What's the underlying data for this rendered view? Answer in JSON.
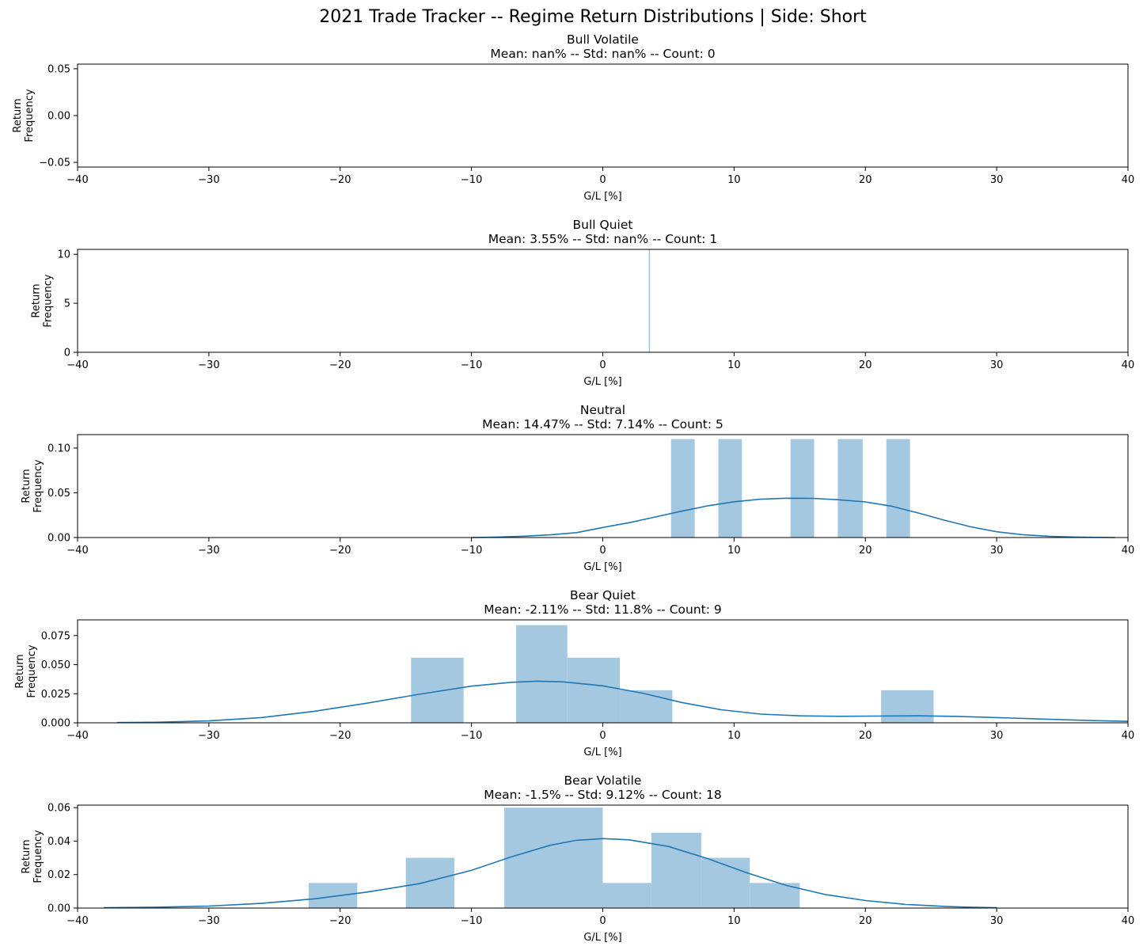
{
  "chart_data": {
    "type": "histogram",
    "title": "2021 Trade Tracker -- Regime Return Distributions | Side: Short",
    "panels": [
      {
        "name": "Bull Volatile",
        "subtitle": "Mean: nan% -- Std: nan% -- Count: 0",
        "xlabel": "G/L [%]",
        "ylabel_line1": "Return",
        "ylabel_line2": "Frequency",
        "xlim": [
          -40,
          40
        ],
        "ylim": [
          -0.055,
          0.055
        ],
        "xticks": [
          -40,
          -30,
          -20,
          -10,
          0,
          10,
          20,
          30,
          40
        ],
        "xtick_labels": [
          "−40",
          "−30",
          "−20",
          "−10",
          "0",
          "10",
          "20",
          "30",
          "40"
        ],
        "yticks": [
          -0.05,
          0,
          0.05
        ],
        "ytick_labels": [
          "−0.05",
          "0.00",
          "0.05"
        ],
        "bins": [],
        "kde": []
      },
      {
        "name": "Bull Quiet",
        "subtitle": "Mean: 3.55% -- Std: nan% -- Count: 1",
        "xlabel": "G/L [%]",
        "ylabel_line1": "Return",
        "ylabel_line2": "Frequency",
        "xlim": [
          -40,
          40
        ],
        "ylim": [
          0,
          10.5
        ],
        "xticks": [
          -40,
          -30,
          -20,
          -10,
          0,
          10,
          20,
          30,
          40
        ],
        "xtick_labels": [
          "−40",
          "−30",
          "−20",
          "−10",
          "0",
          "10",
          "20",
          "30",
          "40"
        ],
        "yticks": [
          0,
          5,
          10
        ],
        "ytick_labels": [
          "0",
          "5",
          "10"
        ],
        "bins": [
          [
            3.5,
            3.6,
            10.5
          ]
        ],
        "kde": []
      },
      {
        "name": "Neutral",
        "subtitle": "Mean: 14.47% -- Std: 7.14% -- Count: 5",
        "xlabel": "G/L [%]",
        "ylabel_line1": "Return",
        "ylabel_line2": "Frequency",
        "xlim": [
          -40,
          40
        ],
        "ylim": [
          0,
          0.115
        ],
        "xticks": [
          -40,
          -30,
          -20,
          -10,
          0,
          10,
          20,
          30,
          40
        ],
        "xtick_labels": [
          "−40",
          "−30",
          "−20",
          "−10",
          "0",
          "10",
          "20",
          "30",
          "40"
        ],
        "yticks": [
          0,
          0.05,
          0.1
        ],
        "ytick_labels": [
          "0.00",
          "0.05",
          "0.10"
        ],
        "bins": [
          [
            5.2,
            7.0,
            0.11
          ],
          [
            8.8,
            10.6,
            0.11
          ],
          [
            14.3,
            16.1,
            0.11
          ],
          [
            17.9,
            19.8,
            0.11
          ],
          [
            21.6,
            23.4,
            0.11
          ]
        ],
        "kde": [
          [
            -10,
            0.0
          ],
          [
            -8,
            0.0005
          ],
          [
            -6,
            0.0015
          ],
          [
            -4,
            0.003
          ],
          [
            -2,
            0.0055
          ],
          [
            0,
            0.0112
          ],
          [
            2,
            0.0165
          ],
          [
            4,
            0.023
          ],
          [
            6,
            0.0295
          ],
          [
            8,
            0.0355
          ],
          [
            10,
            0.04
          ],
          [
            12,
            0.0428
          ],
          [
            14,
            0.044
          ],
          [
            16,
            0.0438
          ],
          [
            18,
            0.0422
          ],
          [
            20,
            0.0398
          ],
          [
            22,
            0.035
          ],
          [
            24,
            0.0275
          ],
          [
            26,
            0.0195
          ],
          [
            28,
            0.012
          ],
          [
            30,
            0.0065
          ],
          [
            32,
            0.0032
          ],
          [
            34,
            0.0014
          ],
          [
            36,
            0.0005
          ],
          [
            39,
            0.0
          ]
        ]
      },
      {
        "name": "Bear Quiet",
        "subtitle": "Mean: -2.11% -- Std: 11.8% -- Count: 9",
        "xlabel": "G/L [%]",
        "ylabel_line1": "Return",
        "ylabel_line2": "Frequency",
        "xlim": [
          -40,
          40
        ],
        "ylim": [
          0,
          0.0885
        ],
        "xticks": [
          -40,
          -30,
          -20,
          -10,
          0,
          10,
          20,
          30,
          40
        ],
        "xtick_labels": [
          "−40",
          "−30",
          "−20",
          "−10",
          "0",
          "10",
          "20",
          "30",
          "40"
        ],
        "yticks": [
          0,
          0.025,
          0.05,
          0.075
        ],
        "ytick_labels": [
          "0.000",
          "0.025",
          "0.050",
          "0.075"
        ],
        "bins": [
          [
            -14.6,
            -10.6,
            0.056
          ],
          [
            -6.6,
            -2.7,
            0.084
          ],
          [
            -2.7,
            1.3,
            0.056
          ],
          [
            1.3,
            5.3,
            0.028
          ],
          [
            21.2,
            25.2,
            0.028
          ]
        ],
        "kde": [
          [
            -37,
            0.0002
          ],
          [
            -34,
            0.0005
          ],
          [
            -30,
            0.0016
          ],
          [
            -26,
            0.0045
          ],
          [
            -22,
            0.0098
          ],
          [
            -18,
            0.0168
          ],
          [
            -14,
            0.0245
          ],
          [
            -10,
            0.0315
          ],
          [
            -7,
            0.0348
          ],
          [
            -5,
            0.0358
          ],
          [
            -3,
            0.0352
          ],
          [
            0,
            0.0318
          ],
          [
            3,
            0.0255
          ],
          [
            6,
            0.0175
          ],
          [
            9,
            0.0112
          ],
          [
            12,
            0.0075
          ],
          [
            15,
            0.006
          ],
          [
            18,
            0.0056
          ],
          [
            21,
            0.0058
          ],
          [
            24,
            0.006
          ],
          [
            27,
            0.0055
          ],
          [
            30,
            0.0045
          ],
          [
            34,
            0.003
          ],
          [
            37,
            0.002
          ],
          [
            40,
            0.0012
          ]
        ]
      },
      {
        "name": "Bear Volatile",
        "subtitle": "Mean: -1.5% -- Std: 9.12% -- Count: 18",
        "xlabel": "G/L [%]",
        "ylabel_line1": "Return",
        "ylabel_line2": "Frequency",
        "xlim": [
          -40,
          40
        ],
        "ylim": [
          0,
          0.0615
        ],
        "xticks": [
          -40,
          -30,
          -20,
          -10,
          0,
          10,
          20,
          30,
          40
        ],
        "xtick_labels": [
          "−40",
          "−30",
          "−20",
          "−10",
          "0",
          "10",
          "20",
          "30",
          "40"
        ],
        "yticks": [
          0,
          0.02,
          0.04,
          0.06
        ],
        "ytick_labels": [
          "0.00",
          "0.02",
          "0.04",
          "0.06"
        ],
        "bins": [
          [
            -22.4,
            -18.7,
            0.015
          ],
          [
            -15,
            -11.3,
            0.03
          ],
          [
            -7.5,
            0.0,
            0.06
          ],
          [
            0.0,
            3.7,
            0.015
          ],
          [
            3.7,
            7.5,
            0.045
          ],
          [
            7.5,
            11.2,
            0.03
          ],
          [
            11.2,
            15.0,
            0.015
          ]
        ],
        "kde": [
          [
            -38,
            0.0002
          ],
          [
            -34,
            0.0005
          ],
          [
            -30,
            0.0012
          ],
          [
            -26,
            0.0028
          ],
          [
            -22,
            0.0055
          ],
          [
            -18,
            0.0095
          ],
          [
            -14,
            0.0145
          ],
          [
            -10,
            0.0225
          ],
          [
            -7,
            0.0305
          ],
          [
            -4,
            0.0375
          ],
          [
            -2,
            0.0405
          ],
          [
            0,
            0.0415
          ],
          [
            2,
            0.0408
          ],
          [
            5,
            0.0368
          ],
          [
            8,
            0.0295
          ],
          [
            11,
            0.021
          ],
          [
            14,
            0.0135
          ],
          [
            17,
            0.008
          ],
          [
            20,
            0.0045
          ],
          [
            23,
            0.0022
          ],
          [
            26,
            0.001
          ],
          [
            28,
            0.0005
          ],
          [
            30,
            0.0002
          ]
        ]
      }
    ]
  }
}
